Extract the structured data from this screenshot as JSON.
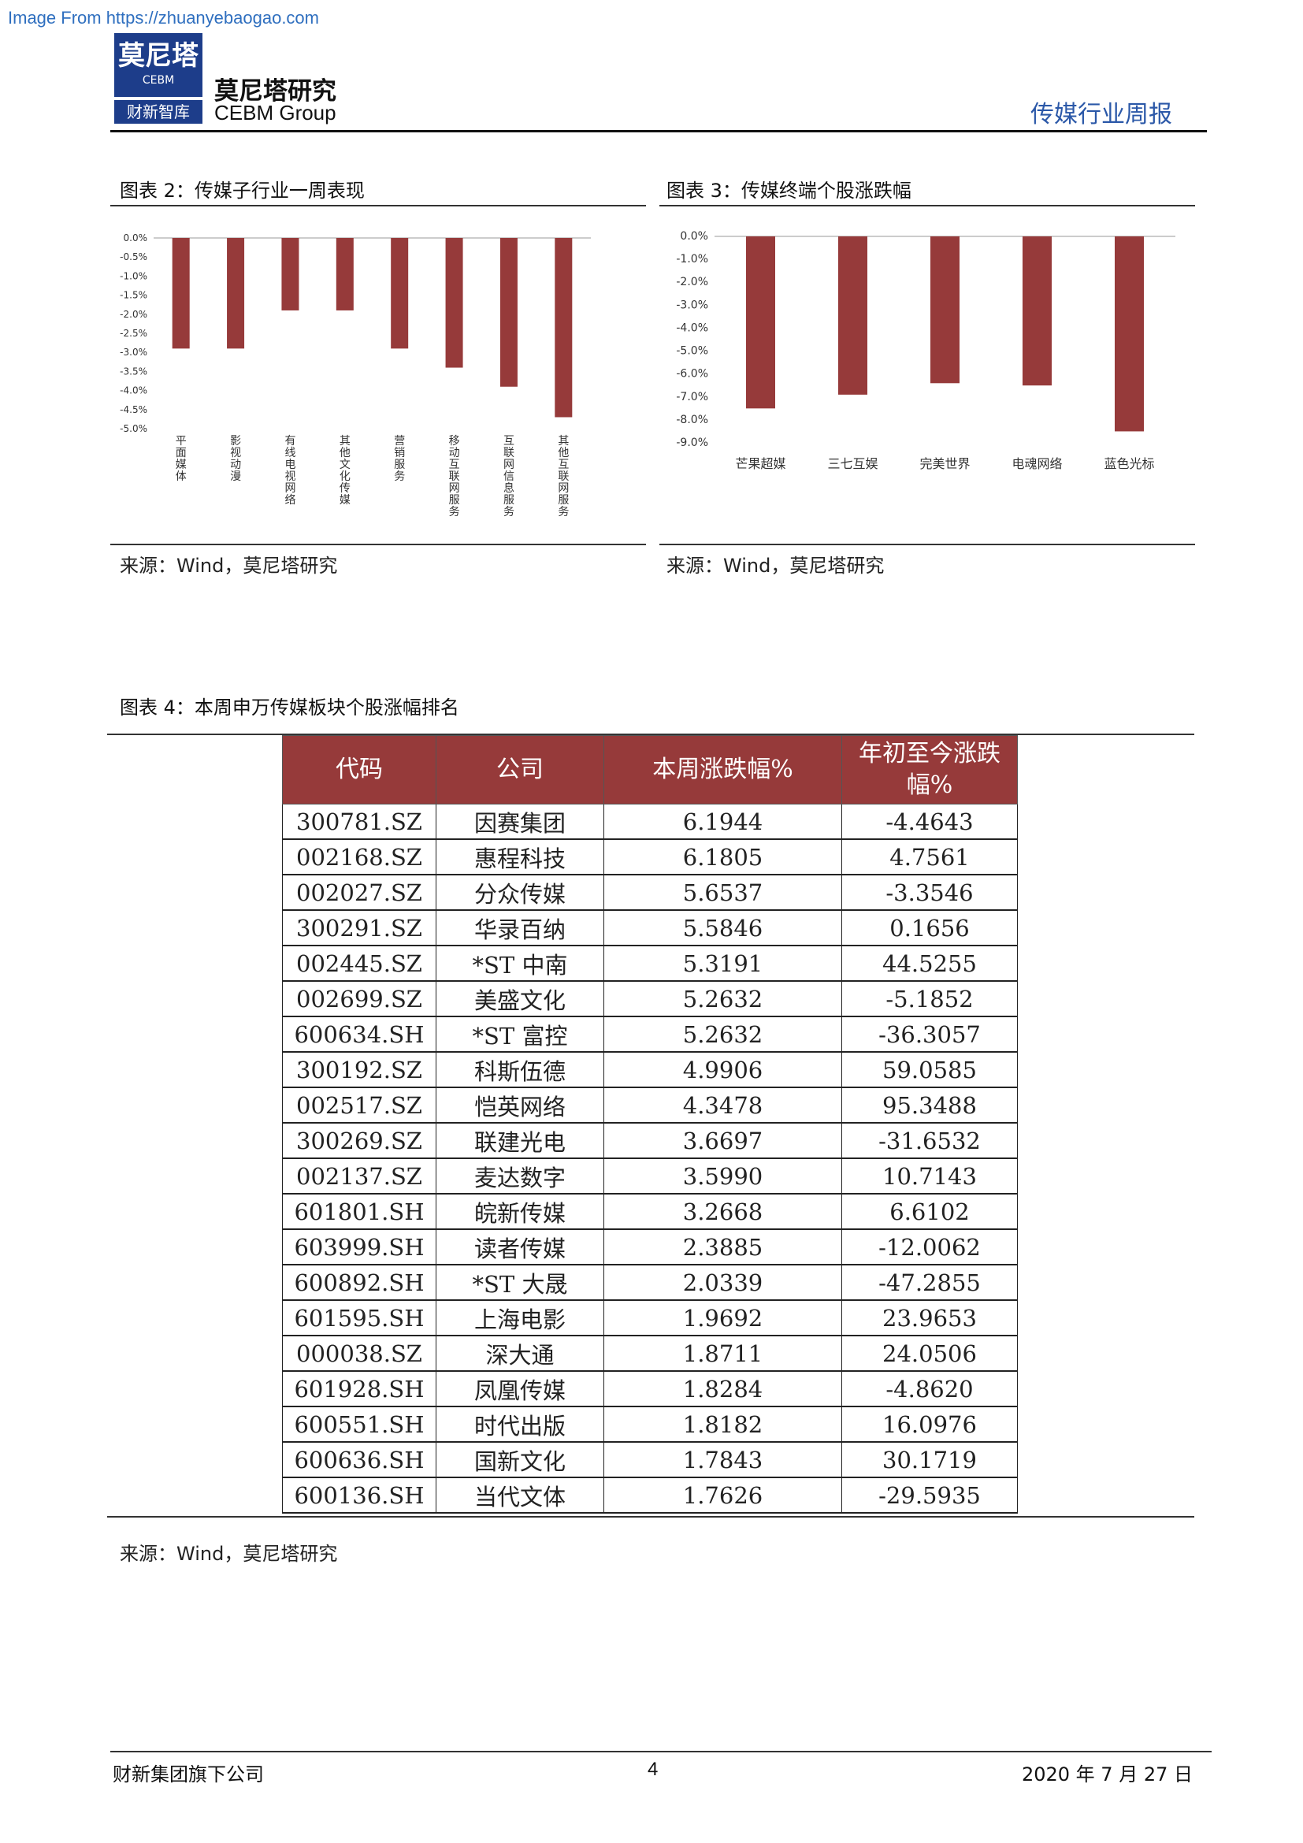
{
  "watermark": "Image From https://zhuanyebaogao.com",
  "header": {
    "logo_cn": "莫尼塔",
    "logo_en": "CEBM",
    "logo_sub": "财新智库",
    "company_cn": "莫尼塔研究",
    "company_en": "CEBM Group",
    "report_type": "传媒行业周报"
  },
  "fig2": {
    "title": "图表 2：传媒子行业一周表现",
    "source": "来源：Wind，莫尼塔研究"
  },
  "fig3": {
    "title": "图表 3：传媒终端个股涨跌幅",
    "source": "来源：Wind，莫尼塔研究"
  },
  "fig4": {
    "title": "图表 4：本周申万传媒板块个股涨幅排名",
    "source": "来源：Wind，莫尼塔研究",
    "columns": [
      "代码",
      "公司",
      "本周涨跌幅%",
      "年初至今涨跌幅%"
    ],
    "rows": [
      [
        "300781.SZ",
        "因赛集团",
        "6.1944",
        "-4.4643"
      ],
      [
        "002168.SZ",
        "惠程科技",
        "6.1805",
        "4.7561"
      ],
      [
        "002027.SZ",
        "分众传媒",
        "5.6537",
        "-3.3546"
      ],
      [
        "300291.SZ",
        "华录百纳",
        "5.5846",
        "0.1656"
      ],
      [
        "002445.SZ",
        "*ST 中南",
        "5.3191",
        "44.5255"
      ],
      [
        "002699.SZ",
        "美盛文化",
        "5.2632",
        "-5.1852"
      ],
      [
        "600634.SH",
        "*ST 富控",
        "5.2632",
        "-36.3057"
      ],
      [
        "300192.SZ",
        "科斯伍德",
        "4.9906",
        "59.0585"
      ],
      [
        "002517.SZ",
        "恺英网络",
        "4.3478",
        "95.3488"
      ],
      [
        "300269.SZ",
        "联建光电",
        "3.6697",
        "-31.6532"
      ],
      [
        "002137.SZ",
        "麦达数字",
        "3.5990",
        "10.7143"
      ],
      [
        "601801.SH",
        "皖新传媒",
        "3.2668",
        "6.6102"
      ],
      [
        "603999.SH",
        "读者传媒",
        "2.3885",
        "-12.0062"
      ],
      [
        "600892.SH",
        "*ST 大晟",
        "2.0339",
        "-47.2855"
      ],
      [
        "601595.SH",
        "上海电影",
        "1.9692",
        "23.9653"
      ],
      [
        "000038.SZ",
        "深大通",
        "1.8711",
        "24.0506"
      ],
      [
        "601928.SH",
        "凤凰传媒",
        "1.8284",
        "-4.8620"
      ],
      [
        "600551.SH",
        "时代出版",
        "1.8182",
        "16.0976"
      ],
      [
        "600636.SH",
        "国新文化",
        "1.7843",
        "30.1719"
      ],
      [
        "600136.SH",
        "当代文体",
        "1.7626",
        "-29.5935"
      ]
    ]
  },
  "chart_data": [
    {
      "type": "bar",
      "title": "图表 2：传媒子行业一周表现",
      "categories": [
        "平面媒体",
        "影视动漫",
        "有线电视网络",
        "其他文化传媒",
        "营销服务",
        "移动互联网服务",
        "互联网信息服务",
        "其他互联网服务"
      ],
      "values": [
        -2.9,
        -2.9,
        -1.9,
        -1.9,
        -2.9,
        -3.4,
        -3.9,
        -4.7
      ],
      "ylim": [
        -5.0,
        0.0
      ],
      "yticks": [
        "0.0%",
        "-0.5%",
        "-1.0%",
        "-1.5%",
        "-2.0%",
        "-2.5%",
        "-3.0%",
        "-3.5%",
        "-4.0%",
        "-4.5%",
        "-5.0%"
      ],
      "bar_color": "#963a3a",
      "grid": false
    },
    {
      "type": "bar",
      "title": "图表 3：传媒终端个股涨跌幅",
      "categories": [
        "芒果超媒",
        "三七互娱",
        "完美世界",
        "电魂网络",
        "蓝色光标"
      ],
      "values": [
        -7.5,
        -6.9,
        -6.4,
        -6.5,
        -8.5
      ],
      "ylim": [
        -9.0,
        0.0
      ],
      "yticks": [
        "0.0%",
        "-1.0%",
        "-2.0%",
        "-3.0%",
        "-4.0%",
        "-5.0%",
        "-6.0%",
        "-7.0%",
        "-8.0%",
        "-9.0%"
      ],
      "bar_color": "#963a3a",
      "grid": false
    }
  ],
  "footer": {
    "left": "财新集团旗下公司",
    "page": "4",
    "date": "2020 年 7 月 27 日"
  }
}
